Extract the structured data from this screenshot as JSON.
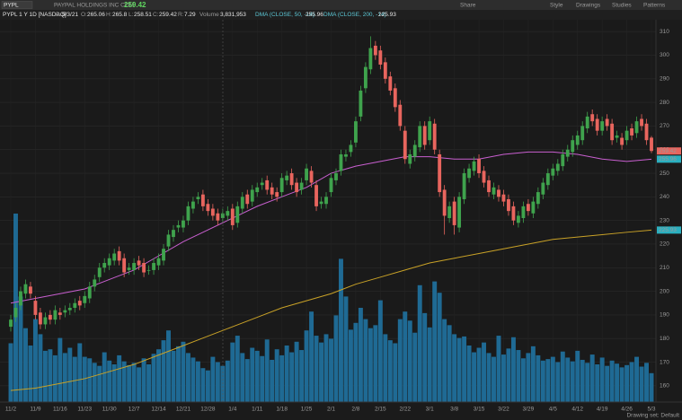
{
  "toolbar": {
    "symbol": "PYPL",
    "company": "PAYPAL HOLDINGS INC COM",
    "buttons": [
      "Share",
      "Style",
      "Drawings",
      "Studies",
      "Patterns"
    ]
  },
  "header": {
    "study": "PYPL 1 Y 1D [NASDAQ]",
    "date_label": "D:",
    "date": "5/3/21",
    "open_label": "O:",
    "high_label": "H:",
    "low_label": "L:",
    "close_label": "C:",
    "range_label": "R:",
    "range": 7.29,
    "volume_label": "Volume",
    "volume_value": "3,831,953"
  },
  "footer": {
    "drawing_set": "Drawing set: Default"
  },
  "chart_data": {
    "type": "candlestick",
    "categories": [
      "11/2",
      null,
      null,
      null,
      null,
      "11/9",
      null,
      null,
      null,
      null,
      "11/16",
      null,
      null,
      null,
      null,
      "11/23",
      null,
      null,
      null,
      null,
      "11/30",
      null,
      null,
      null,
      null,
      "12/7",
      null,
      null,
      null,
      null,
      "12/14",
      null,
      null,
      null,
      null,
      "12/21",
      null,
      null,
      null,
      null,
      "12/28",
      null,
      null,
      null,
      null,
      "1/4",
      null,
      null,
      null,
      null,
      "1/11",
      null,
      null,
      null,
      null,
      "1/18",
      null,
      null,
      null,
      null,
      "1/25",
      null,
      null,
      null,
      null,
      "2/1",
      null,
      null,
      null,
      null,
      "2/8",
      null,
      null,
      null,
      null,
      "2/15",
      null,
      null,
      null,
      null,
      "2/22",
      null,
      null,
      null,
      null,
      "3/1",
      null,
      null,
      null,
      null,
      "3/8",
      null,
      null,
      null,
      null,
      "3/15",
      null,
      null,
      null,
      null,
      "3/22",
      null,
      null,
      null,
      null,
      "3/29",
      null,
      null,
      null,
      null,
      "4/5",
      null,
      null,
      null,
      null,
      "4/12",
      null,
      null,
      null,
      null,
      "4/19",
      null,
      null,
      null,
      null,
      "4/26",
      null,
      null,
      null,
      null,
      "5/3"
    ],
    "open": [
      185,
      189,
      194,
      199,
      202,
      196,
      191,
      186,
      190,
      188,
      191,
      191,
      192,
      193,
      196,
      195,
      197,
      202,
      206,
      210,
      211,
      213,
      217,
      214,
      209,
      209,
      213,
      212,
      209,
      209,
      211,
      213,
      219,
      223,
      227,
      227,
      230,
      235,
      239,
      241,
      237,
      235,
      233,
      231,
      232,
      235,
      229,
      235,
      241,
      238,
      242,
      245,
      247,
      244,
      242,
      242,
      247,
      250,
      246,
      243,
      247,
      251,
      245,
      237,
      237,
      242,
      247,
      251,
      257,
      259,
      263,
      274,
      286,
      294,
      304,
      302,
      297,
      291,
      286,
      279,
      268,
      254,
      257,
      261,
      270,
      264,
      271,
      258,
      243,
      231,
      238,
      227,
      239,
      248,
      251,
      256,
      251,
      247,
      241,
      243,
      241,
      239,
      236,
      229,
      231,
      237,
      233,
      237,
      241,
      245,
      249,
      251,
      253,
      257,
      259,
      262,
      264,
      269,
      275,
      273,
      268,
      273,
      271,
      265,
      265,
      264,
      269,
      267,
      273,
      271,
      265.06
    ],
    "high": [
      190,
      195,
      202,
      205,
      204,
      198,
      193,
      191,
      192,
      194,
      193,
      194,
      195,
      197,
      198,
      200,
      204,
      207,
      212,
      214,
      216,
      218,
      219,
      216,
      212,
      214,
      215,
      214,
      211,
      214,
      216,
      220,
      226,
      228,
      230,
      232,
      238,
      240,
      242,
      243,
      239,
      237,
      235,
      235,
      236,
      237,
      238,
      242,
      243,
      245,
      246,
      248,
      249,
      246,
      244,
      250,
      251,
      252,
      248,
      248,
      254,
      253,
      247,
      240,
      242,
      250,
      252,
      260,
      260,
      264,
      274,
      287,
      297,
      308,
      306,
      304,
      299,
      293,
      288,
      281,
      270,
      260,
      264,
      272,
      272,
      274,
      273,
      260,
      245,
      238,
      240,
      242,
      252,
      254,
      257,
      258,
      253,
      249,
      246,
      245,
      243,
      241,
      238,
      234,
      238,
      239,
      240,
      244,
      248,
      252,
      254,
      256,
      260,
      262,
      266,
      268,
      272,
      276,
      277,
      275,
      274,
      275,
      273,
      268,
      267,
      270,
      271,
      274,
      275,
      273,
      265.8
    ],
    "low": [
      183,
      187,
      192,
      197,
      197,
      188,
      184,
      184,
      186,
      186,
      188,
      189,
      190,
      191,
      192,
      193,
      195,
      200,
      204,
      208,
      209,
      211,
      211,
      206,
      207,
      207,
      209,
      206,
      207,
      207,
      209,
      211,
      217,
      221,
      225,
      225,
      228,
      233,
      237,
      234,
      232,
      230,
      228,
      229,
      230,
      226,
      227,
      233,
      235,
      236,
      240,
      243,
      241,
      239,
      238,
      240,
      245,
      243,
      240,
      241,
      245,
      244,
      234,
      235,
      235,
      240,
      245,
      249,
      255,
      257,
      261,
      272,
      284,
      292,
      298,
      294,
      288,
      283,
      276,
      268,
      254,
      252,
      255,
      259,
      260,
      262,
      258,
      240,
      224,
      229,
      224,
      225,
      237,
      246,
      249,
      248,
      244,
      240,
      239,
      238,
      236,
      232,
      228,
      227,
      229,
      232,
      231,
      235,
      239,
      243,
      247,
      249,
      251,
      255,
      257,
      260,
      262,
      267,
      270,
      266,
      266,
      268,
      262,
      263,
      260,
      262,
      264,
      265,
      268,
      262,
      258.51
    ],
    "close": [
      188,
      193,
      200,
      203,
      199,
      190,
      186,
      189,
      188,
      192,
      190,
      192,
      193,
      195,
      194,
      198,
      202,
      205,
      210,
      212,
      214,
      216,
      213,
      208,
      210,
      212,
      211,
      208,
      209,
      212,
      214,
      218,
      224,
      226,
      228,
      230,
      236,
      238,
      240,
      236,
      234,
      232,
      230,
      233,
      234,
      228,
      236,
      240,
      237,
      243,
      244,
      246,
      243,
      241,
      240,
      248,
      249,
      245,
      242,
      246,
      252,
      246,
      236,
      238,
      240,
      248,
      250,
      258,
      258,
      262,
      272,
      285,
      295,
      303,
      300,
      296,
      290,
      285,
      278,
      270,
      256,
      258,
      262,
      270,
      262,
      272,
      260,
      242,
      232,
      236,
      228,
      240,
      250,
      252,
      255,
      250,
      246,
      242,
      244,
      240,
      238,
      234,
      230,
      232,
      236,
      234,
      238,
      242,
      246,
      250,
      252,
      254,
      258,
      260,
      264,
      266,
      270,
      274,
      272,
      268,
      272,
      270,
      264,
      266,
      262,
      268,
      266,
      272,
      270,
      264,
      259.42
    ],
    "volume": [
      7800000,
      25000000,
      14000000,
      9800000,
      7500000,
      11000000,
      9000000,
      6800000,
      7000000,
      6200000,
      8500000,
      6500000,
      7200000,
      6000000,
      7800000,
      6000000,
      5800000,
      5200000,
      4800000,
      6600000,
      5500000,
      5000000,
      6200000,
      5400000,
      4900000,
      5200000,
      4600000,
      5800000,
      5000000,
      6400000,
      7000000,
      8200000,
      9500000,
      6800000,
      7400000,
      8000000,
      6500000,
      5900000,
      5400000,
      4500000,
      4200000,
      6000000,
      5300000,
      4800000,
      5500000,
      7900000,
      8800000,
      6500000,
      5700000,
      7200000,
      6800000,
      6100000,
      8300000,
      5600000,
      7000000,
      6200000,
      7500000,
      6600000,
      8000000,
      6900000,
      9500000,
      12000000,
      8800000,
      7900000,
      9000000,
      8400000,
      11500000,
      19000000,
      14000000,
      9600000,
      10500000,
      12500000,
      11000000,
      9800000,
      10200000,
      13500000,
      9000000,
      8200000,
      7800000,
      11000000,
      12000000,
      10800000,
      9200000,
      15500000,
      11800000,
      9900000,
      16000000,
      14500000,
      11000000,
      10200000,
      9000000,
      8500000,
      8700000,
      7500000,
      6600000,
      7200000,
      7900000,
      6500000,
      6000000,
      8800000,
      6300000,
      7100000,
      8600000,
      6900000,
      5800000,
      6500000,
      7400000,
      6200000,
      5500000,
      5700000,
      6000000,
      5300000,
      6700000,
      5900000,
      5400000,
      6800000,
      5600000,
      5200000,
      6300000,
      5000000,
      5900000,
      4800000,
      5500000,
      5100000,
      4600000,
      4900000,
      5300000,
      6000000,
      4700000,
      5200000,
      3831953
    ],
    "series": [
      {
        "name": "DMA (CLOSE, 50, -14)",
        "color": "#c95fd0",
        "x": [
          "11/2",
          "11/9",
          "11/16",
          "11/23",
          "11/30",
          "12/7",
          "12/14",
          "12/21",
          "12/28",
          "1/4",
          "1/11",
          "1/18",
          "1/25",
          "2/1",
          "2/8",
          "2/15",
          "2/22",
          "3/1",
          "3/8",
          "3/15",
          "3/22",
          "3/29",
          "4/5",
          "4/12",
          "4/19",
          "4/26",
          "5/3"
        ],
        "values": [
          195,
          197,
          199,
          201,
          205,
          209,
          215,
          221,
          226,
          231,
          236,
          240,
          244,
          250,
          253,
          255,
          257,
          257,
          256,
          256,
          258,
          259,
          259,
          258,
          256,
          255,
          255.96
        ]
      },
      {
        "name": "DMA (CLOSE, 200, -14)",
        "color": "#c9a227",
        "x": [
          "11/2",
          "11/9",
          "11/16",
          "11/23",
          "11/30",
          "12/7",
          "12/14",
          "12/21",
          "12/28",
          "1/4",
          "1/11",
          "1/18",
          "1/25",
          "2/1",
          "2/8",
          "2/15",
          "2/22",
          "3/1",
          "3/8",
          "3/15",
          "3/22",
          "3/29",
          "4/5",
          "4/12",
          "4/19",
          "4/26",
          "5/3"
        ],
        "values": [
          158,
          159,
          161,
          163,
          166,
          169,
          173,
          177,
          181,
          185,
          189,
          193,
          196,
          199,
          203,
          206,
          209,
          212,
          214,
          216,
          218,
          220,
          222,
          223,
          224,
          225,
          225.93
        ]
      }
    ],
    "ylim": [
      155,
      315
    ],
    "yticks": [
      160,
      170,
      180,
      190,
      200,
      210,
      220,
      230,
      240,
      250,
      260,
      270,
      280,
      290,
      300,
      310
    ],
    "y2lim": [
      0,
      30000000
    ],
    "grid": true,
    "up_color": "#3fa34d",
    "down_color": "#e8655e",
    "volume_color": "#1f6a94",
    "last_color": "#e8655e",
    "ma_box_color": "#2ab0c0"
  }
}
